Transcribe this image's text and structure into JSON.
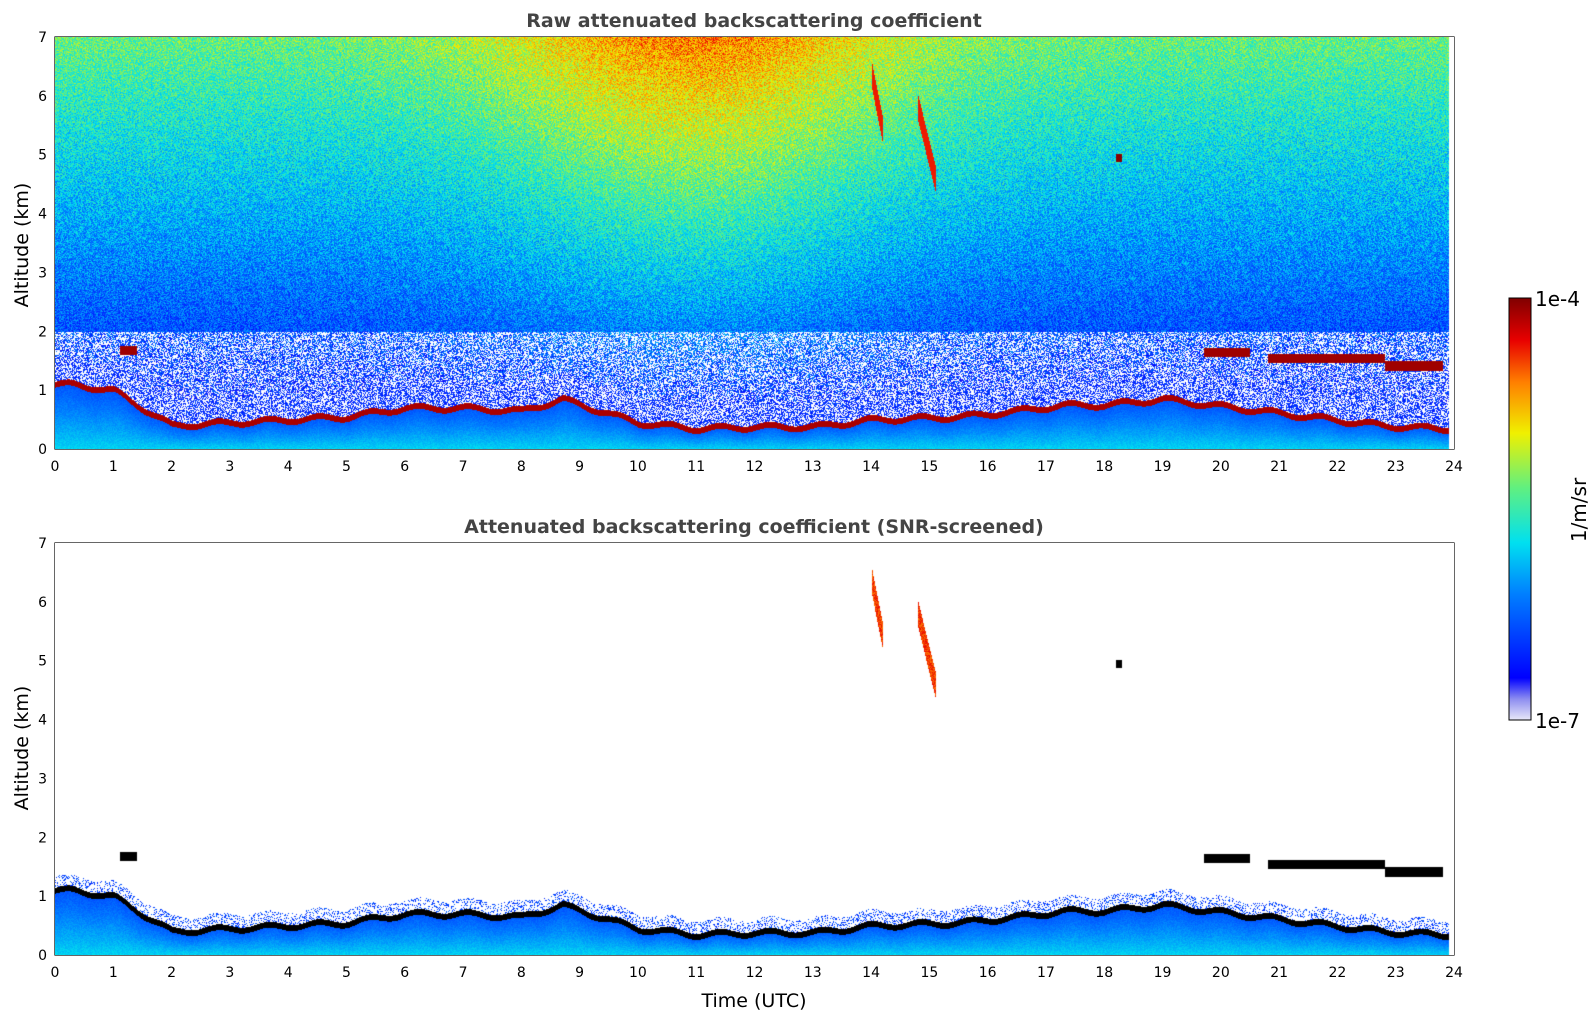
{
  "chart_data": [
    {
      "type": "heatmap",
      "title": "Raw attenuated backscattering coefficient",
      "xlabel": "",
      "ylabel": "Altitude (km)",
      "xlim": [
        0,
        24
      ],
      "ylim": [
        0,
        7
      ],
      "x_ticks": [
        "0",
        "1",
        "2",
        "3",
        "4",
        "5",
        "6",
        "7",
        "8",
        "9",
        "10",
        "11",
        "12",
        "13",
        "14",
        "15",
        "16",
        "17",
        "18",
        "19",
        "20",
        "21",
        "22",
        "23",
        "24"
      ],
      "y_ticks": [
        "0",
        "1",
        "2",
        "3",
        "4",
        "5",
        "6",
        "7"
      ],
      "features": {
        "boundary_layer_top_km": [
          {
            "time": 0.3,
            "alt": 1.1
          },
          {
            "time": 1.0,
            "alt": 1.0
          },
          {
            "time": 2.0,
            "alt": 0.4
          },
          {
            "time": 3.0,
            "alt": 0.45
          },
          {
            "time": 4.0,
            "alt": 0.5
          },
          {
            "time": 5.0,
            "alt": 0.55
          },
          {
            "time": 6.0,
            "alt": 0.7
          },
          {
            "time": 7.0,
            "alt": 0.7
          },
          {
            "time": 8.0,
            "alt": 0.65
          },
          {
            "time": 8.7,
            "alt": 0.85
          },
          {
            "time": 10.0,
            "alt": 0.45
          },
          {
            "time": 11.0,
            "alt": 0.35
          },
          {
            "time": 12.0,
            "alt": 0.38
          },
          {
            "time": 13.0,
            "alt": 0.38
          },
          {
            "time": 14.0,
            "alt": 0.5
          },
          {
            "time": 15.5,
            "alt": 0.55
          },
          {
            "time": 16.5,
            "alt": 0.65
          },
          {
            "time": 17.3,
            "alt": 0.75
          },
          {
            "time": 18.0,
            "alt": 0.75
          },
          {
            "time": 19.0,
            "alt": 0.85
          },
          {
            "time": 22.8,
            "alt": 0.4
          },
          {
            "time": 23.8,
            "alt": 0.35
          }
        ],
        "cloud_layers": [
          {
            "t_start": 1.1,
            "t_end": 1.4,
            "alt": 1.68
          },
          {
            "t_start": 19.7,
            "t_end": 20.5,
            "alt": 1.65
          },
          {
            "t_start": 20.8,
            "t_end": 22.8,
            "alt": 1.55
          },
          {
            "t_start": 22.8,
            "t_end": 23.8,
            "alt": 1.42
          }
        ],
        "cirrus_streaks": [
          {
            "t_start": 14.0,
            "t_end": 14.2,
            "alt_top": 6.4,
            "alt_bottom": 5.4
          },
          {
            "t_start": 14.8,
            "t_end": 15.1,
            "alt_top": 5.8,
            "alt_bottom": 4.6
          }
        ],
        "point_target": {
          "time": 18.25,
          "alt": 4.95
        }
      }
    },
    {
      "type": "heatmap",
      "title": "Attenuated backscattering coefficient (SNR-screened)",
      "xlabel": "Time (UTC)",
      "ylabel": "Altitude (km)",
      "xlim": [
        0,
        24
      ],
      "ylim": [
        0,
        7
      ],
      "x_ticks": [
        "0",
        "1",
        "2",
        "3",
        "4",
        "5",
        "6",
        "7",
        "8",
        "9",
        "10",
        "11",
        "12",
        "13",
        "14",
        "15",
        "16",
        "17",
        "18",
        "19",
        "20",
        "21",
        "22",
        "23",
        "24"
      ],
      "y_ticks": [
        "0",
        "1",
        "2",
        "3",
        "4",
        "5",
        "6",
        "7"
      ]
    }
  ],
  "colorbar": {
    "label": "1/m/sr",
    "max_label": "1e-4",
    "min_label": "1e-7",
    "scale": "log"
  }
}
